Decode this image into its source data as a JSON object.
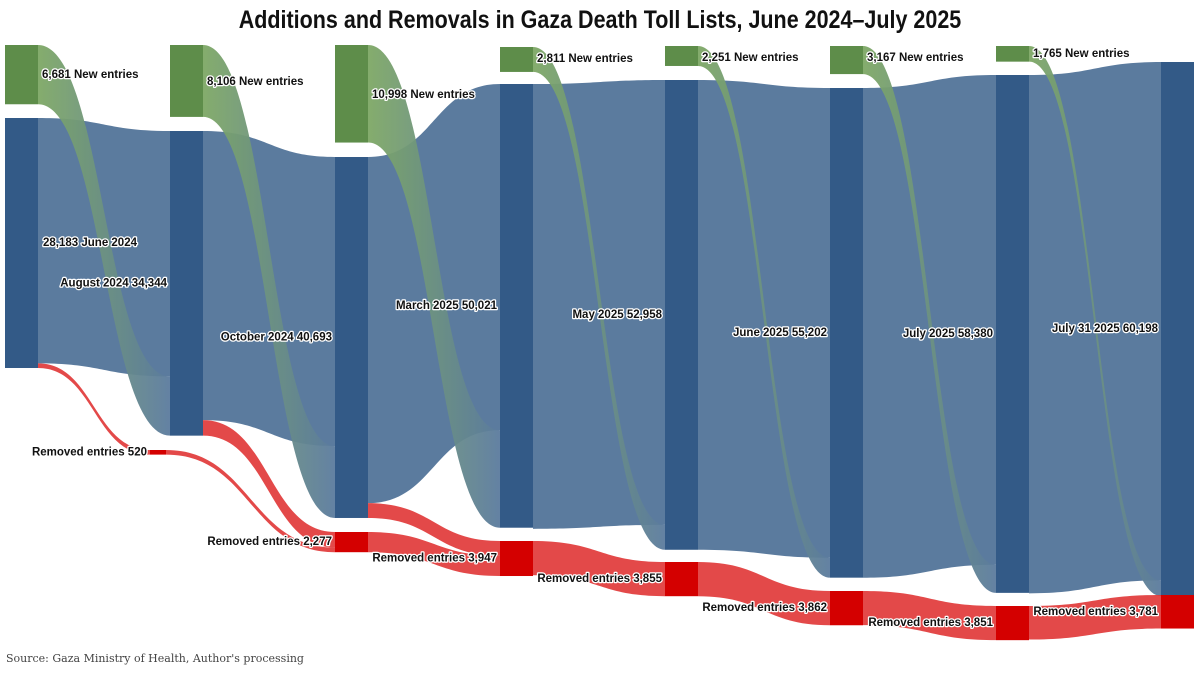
{
  "title": "Additions and Removals in Gaza Death Toll Lists, June 2024–July 2025",
  "source": "Source: Gaza Ministry of Health, Author's processing",
  "colors": {
    "list_node": "#335a87",
    "list_flow": "#5b7b9e",
    "new_node": "#5e8d4a",
    "new_flow": "#7ea865",
    "removed_node": "#d40000",
    "removed_flow": "#e03535"
  },
  "chart_data": {
    "type": "sankey",
    "title": "Additions and Removals in Gaza Death Toll Lists, June 2024–July 2025",
    "units": "entries",
    "list_nodes": [
      {
        "id": "L0",
        "label": "28,183 June 2024",
        "value": 28183
      },
      {
        "id": "L1",
        "label": "August 2024 34,344",
        "value": 34344
      },
      {
        "id": "L2",
        "label": "October 2024 40,693",
        "value": 40693
      },
      {
        "id": "L3",
        "label": "March 2025 50,021",
        "value": 50021
      },
      {
        "id": "L4",
        "label": "May 2025 52,958",
        "value": 52958
      },
      {
        "id": "L5",
        "label": "June 2025 55,202",
        "value": 55202
      },
      {
        "id": "L6",
        "label": "July 2025 58,380",
        "value": 58380
      },
      {
        "id": "L7",
        "label": "July 31 2025 60,198",
        "value": 60198
      }
    ],
    "new_nodes": [
      {
        "id": "N0",
        "label": "6,681 New entries",
        "value": 6681
      },
      {
        "id": "N1",
        "label": "8,106 New entries",
        "value": 8106
      },
      {
        "id": "N2",
        "label": "10,998 New entries",
        "value": 10998
      },
      {
        "id": "N3",
        "label": "2,811 New entries",
        "value": 2811
      },
      {
        "id": "N4",
        "label": "2,251 New entries",
        "value": 2251
      },
      {
        "id": "N5",
        "label": "3,167 New entries",
        "value": 3167
      },
      {
        "id": "N6",
        "label": "1,765 New entries",
        "value": 1765
      }
    ],
    "removed_nodes": [
      {
        "id": "R0",
        "label": "Removed entries 520",
        "value": 520
      },
      {
        "id": "R1",
        "label": "Removed entries 2,277",
        "value": 2277
      },
      {
        "id": "R2",
        "label": "Removed entries 3,947",
        "value": 3947
      },
      {
        "id": "R3",
        "label": "Removed entries 3,855",
        "value": 3855
      },
      {
        "id": "R4",
        "label": "Removed entries 3,862",
        "value": 3862
      },
      {
        "id": "R5",
        "label": "Removed entries 3,851",
        "value": 3851
      },
      {
        "id": "R6",
        "label": "Removed entries 3,781",
        "value": 3781
      }
    ],
    "flows": [
      {
        "source": "L0",
        "target": "L1",
        "value": 27663
      },
      {
        "source": "N0",
        "target": "L1",
        "value": 6681
      },
      {
        "source": "L0",
        "target": "R0",
        "value": 520
      },
      {
        "source": "L1",
        "target": "L2",
        "value": 32587
      },
      {
        "source": "N1",
        "target": "L2",
        "value": 8106
      },
      {
        "source": "L1",
        "target": "R1",
        "value": 1757
      },
      {
        "source": "R0",
        "target": "R1",
        "value": 520
      },
      {
        "source": "L2",
        "target": "L3",
        "value": 39023
      },
      {
        "source": "N2",
        "target": "L3",
        "value": 10998
      },
      {
        "source": "L2",
        "target": "R2",
        "value": 1670
      },
      {
        "source": "R1",
        "target": "R2",
        "value": 2277
      },
      {
        "source": "L3",
        "target": "L4",
        "value": 50147
      },
      {
        "source": "N3",
        "target": "L4",
        "value": 2811
      },
      {
        "source": "R2",
        "target": "R3",
        "value": 3855
      },
      {
        "source": "L4",
        "target": "L5",
        "value": 52951
      },
      {
        "source": "N4",
        "target": "L5",
        "value": 2251
      },
      {
        "source": "R3",
        "target": "R4",
        "value": 3855
      },
      {
        "source": "L5",
        "target": "L6",
        "value": 55213
      },
      {
        "source": "N5",
        "target": "L6",
        "value": 3167
      },
      {
        "source": "R4",
        "target": "R5",
        "value": 3851
      },
      {
        "source": "L6",
        "target": "L7",
        "value": 58433
      },
      {
        "source": "N6",
        "target": "L7",
        "value": 1765
      },
      {
        "source": "R5",
        "target": "R6",
        "value": 3781
      }
    ]
  }
}
